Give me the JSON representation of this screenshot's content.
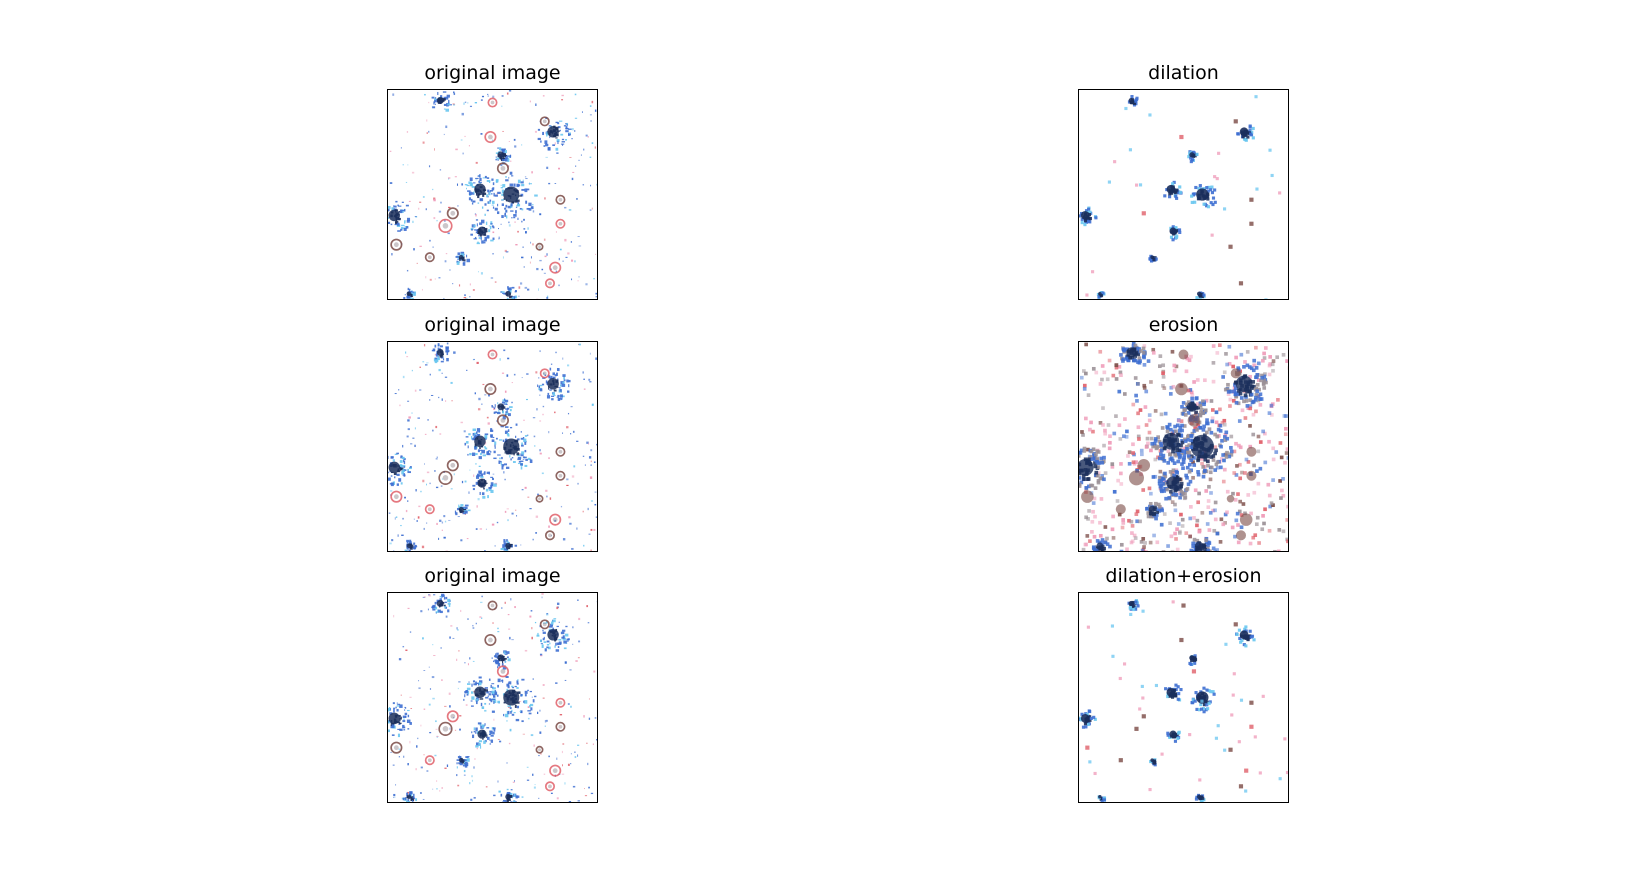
{
  "figure": {
    "panels": [
      {
        "id": "p-orig-1",
        "title": "original image",
        "variant": "original"
      },
      {
        "id": "p-dil",
        "title": "dilation",
        "variant": "dilation"
      },
      {
        "id": "p-orig-2",
        "title": "original image",
        "variant": "original"
      },
      {
        "id": "p-ero",
        "title": "erosion",
        "variant": "erosion"
      },
      {
        "id": "p-orig-3",
        "title": "original image",
        "variant": "original"
      },
      {
        "id": "p-both",
        "title": "dilation+erosion",
        "variant": "dilation_erosion"
      }
    ],
    "colors": {
      "background": "#ffffff",
      "frame": "#000000",
      "dark_blue": "#1b2f5c",
      "blue": "#3e6fd1",
      "light_blue": "#69c6f0",
      "red": "#e0606a",
      "pink": "#ef9ab8",
      "brown": "#7a4a45",
      "gray": "#9a8f95"
    }
  }
}
